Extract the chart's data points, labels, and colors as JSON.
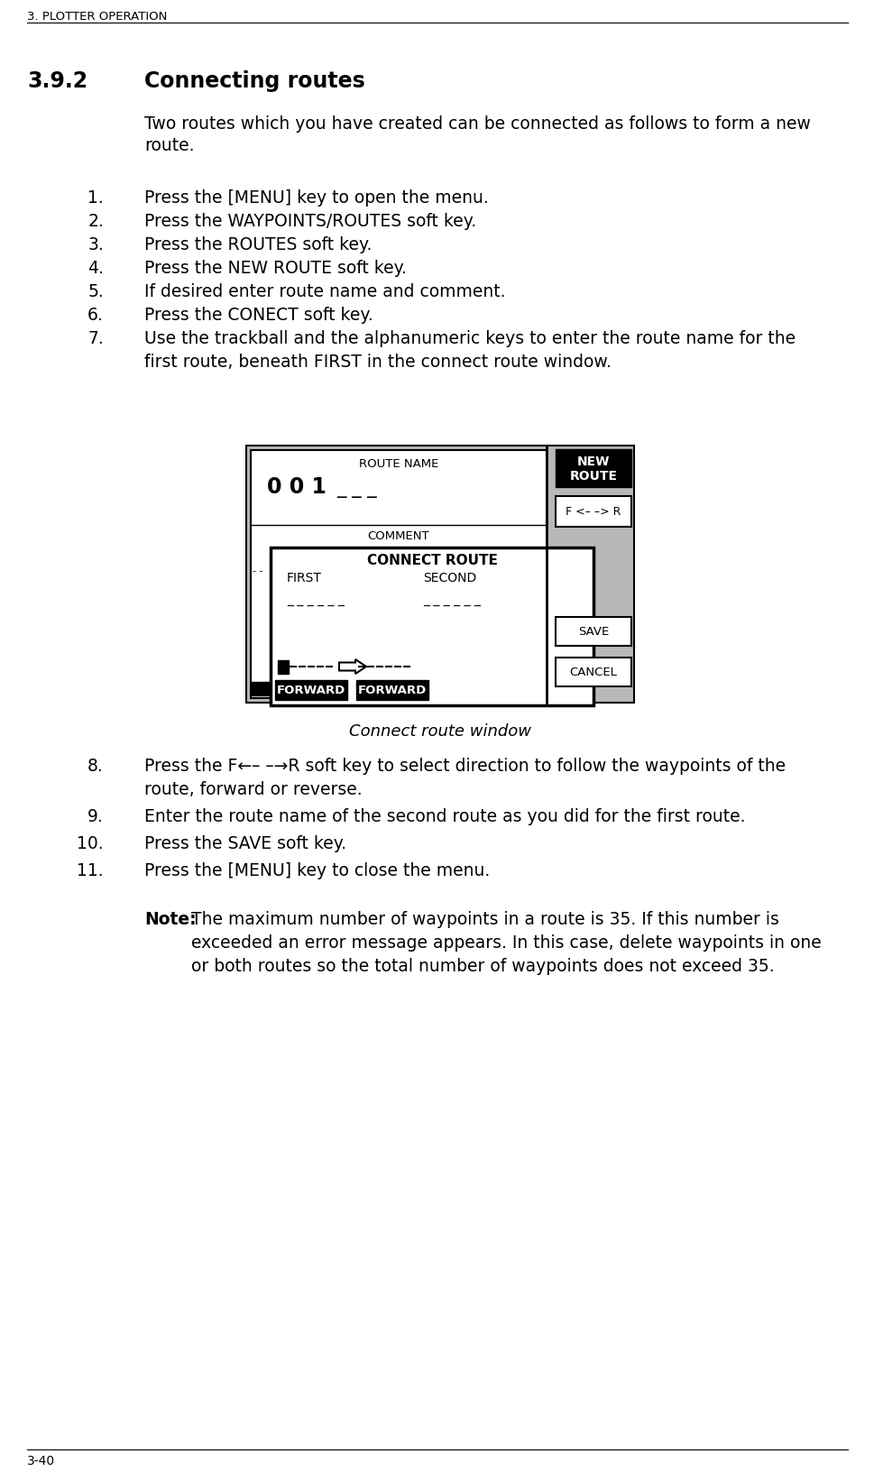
{
  "bg_color": "#ffffff",
  "header_text": "3. PLOTTER OPERATION",
  "section_num": "3.9.2",
  "section_title": "Connecting routes",
  "intro_line1": "Two routes which you have created can be connected as follows to form a new",
  "intro_line2": "route.",
  "steps": [
    "Press the [MENU] key to open the menu.",
    "Press the WAYPOINTS/ROUTES soft key.",
    "Press the ROUTES soft key.",
    "Press the NEW ROUTE soft key.",
    "If desired enter route name and comment.",
    "Press the CONECT soft key.",
    "Use the trackball and the alphanumeric keys to enter the route name for the"
  ],
  "step7_line2": "first route, beneath FIRST in the connect route window.",
  "caption": "Connect route window",
  "step8_num": "8.",
  "step8_line1": "Press the F←– –→R soft key to select direction to follow the waypoints of the",
  "step8_line2": "route, forward or reverse.",
  "step9_num": "9.",
  "step9_text": "Enter the route name of the second route as you did for the first route.",
  "step10_num": "10.",
  "step10_text": "Press the SAVE soft key.",
  "step11_num": "11.",
  "step11_text": "Press the [MENU] key to close the menu.",
  "note_bold": "Note:",
  "note_line1": "The maximum number of waypoints in a route is 35. If this number is",
  "note_line2": "exceeded an error message appears. In this case, delete waypoints in one",
  "note_line3": "or both routes so the total number of waypoints does not exceed 35.",
  "footer_text": "3-40",
  "diagram": {
    "outer_bg": "#b8b8b8",
    "inner_bg": "#ffffff",
    "route_name_label": "ROUTE NAME",
    "comment_label": "COMMENT",
    "connect_route_label": "CONNECT ROUTE",
    "first_label": "FIRST",
    "second_label": "SECOND",
    "forward1": "FORWARD",
    "forward2": "FORWARD",
    "btn_new_route_text": "NEW\nROUTE",
    "btn_fr_text": "F <– –> R",
    "btn_save_text": "SAVE",
    "btn_cancel_text": "CANCEL"
  }
}
